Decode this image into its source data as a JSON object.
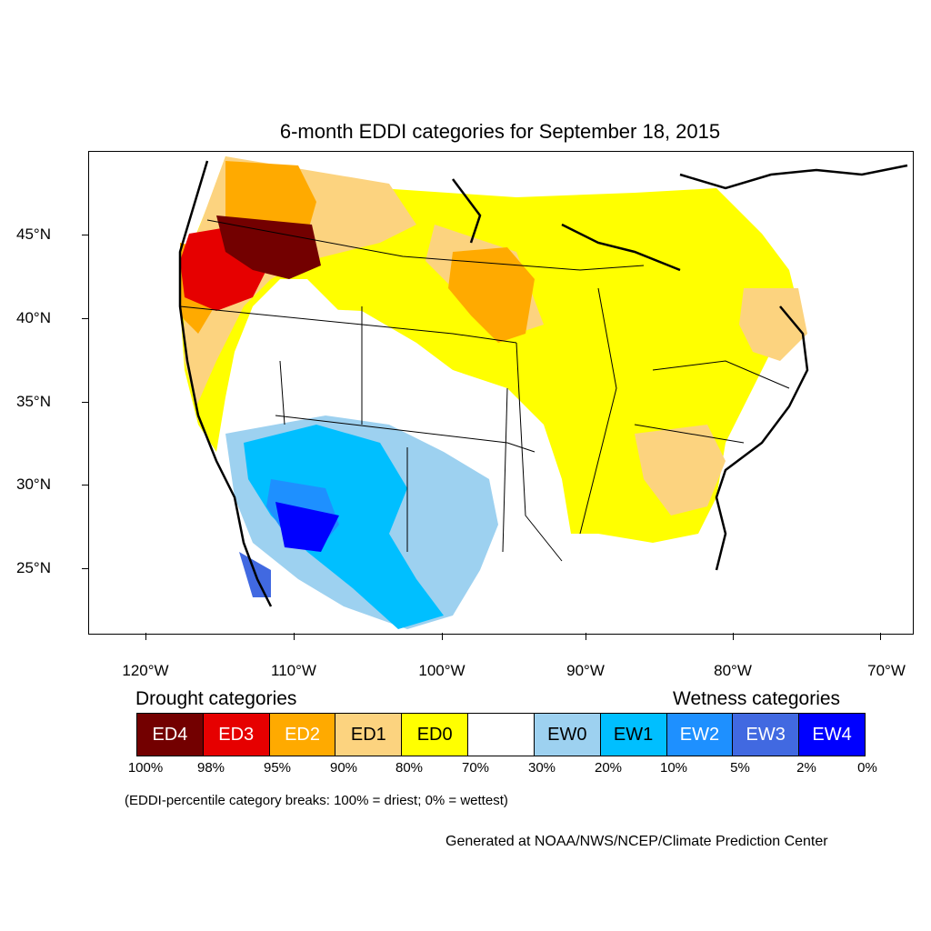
{
  "title": "6-month EDDI categories for September 18, 2015",
  "map": {
    "lat_labels": [
      "45°N",
      "40°N",
      "35°N",
      "30°N",
      "25°N"
    ],
    "lon_labels": [
      "120°W",
      "110°W",
      "100°W",
      "90°W",
      "80°W",
      "70°W"
    ]
  },
  "legend": {
    "drought_heading": "Drought categories",
    "wetness_heading": "Wetness categories",
    "categories": [
      {
        "label": "ED4",
        "color": "#730000",
        "text_color": "#ffffff"
      },
      {
        "label": "ED3",
        "color": "#e60000",
        "text_color": "#ffffff"
      },
      {
        "label": "ED2",
        "color": "#ffaa00",
        "text_color": "#ffffff"
      },
      {
        "label": "ED1",
        "color": "#fcd37f",
        "text_color": "#000000"
      },
      {
        "label": "ED0",
        "color": "#ffff00",
        "text_color": "#000000"
      },
      {
        "label": "",
        "color": "#ffffff",
        "text_color": "#000000"
      },
      {
        "label": "EW0",
        "color": "#9dd1f0",
        "text_color": "#000000"
      },
      {
        "label": "EW1",
        "color": "#00bfff",
        "text_color": "#000000"
      },
      {
        "label": "EW2",
        "color": "#1e90ff",
        "text_color": "#ffffff"
      },
      {
        "label": "EW3",
        "color": "#4169e1",
        "text_color": "#ffffff"
      },
      {
        "label": "EW4",
        "color": "#0000ff",
        "text_color": "#ffffff"
      }
    ],
    "percent_breaks": [
      "100%",
      "98%",
      "95%",
      "90%",
      "80%",
      "70%",
      "30%",
      "20%",
      "10%",
      "5%",
      "2%",
      "0%"
    ]
  },
  "note": "(EDDI-percentile category breaks: 100% = driest; 0% = wettest)",
  "credit": "Generated at NOAA/NWS/NCEP/Climate Prediction Center"
}
